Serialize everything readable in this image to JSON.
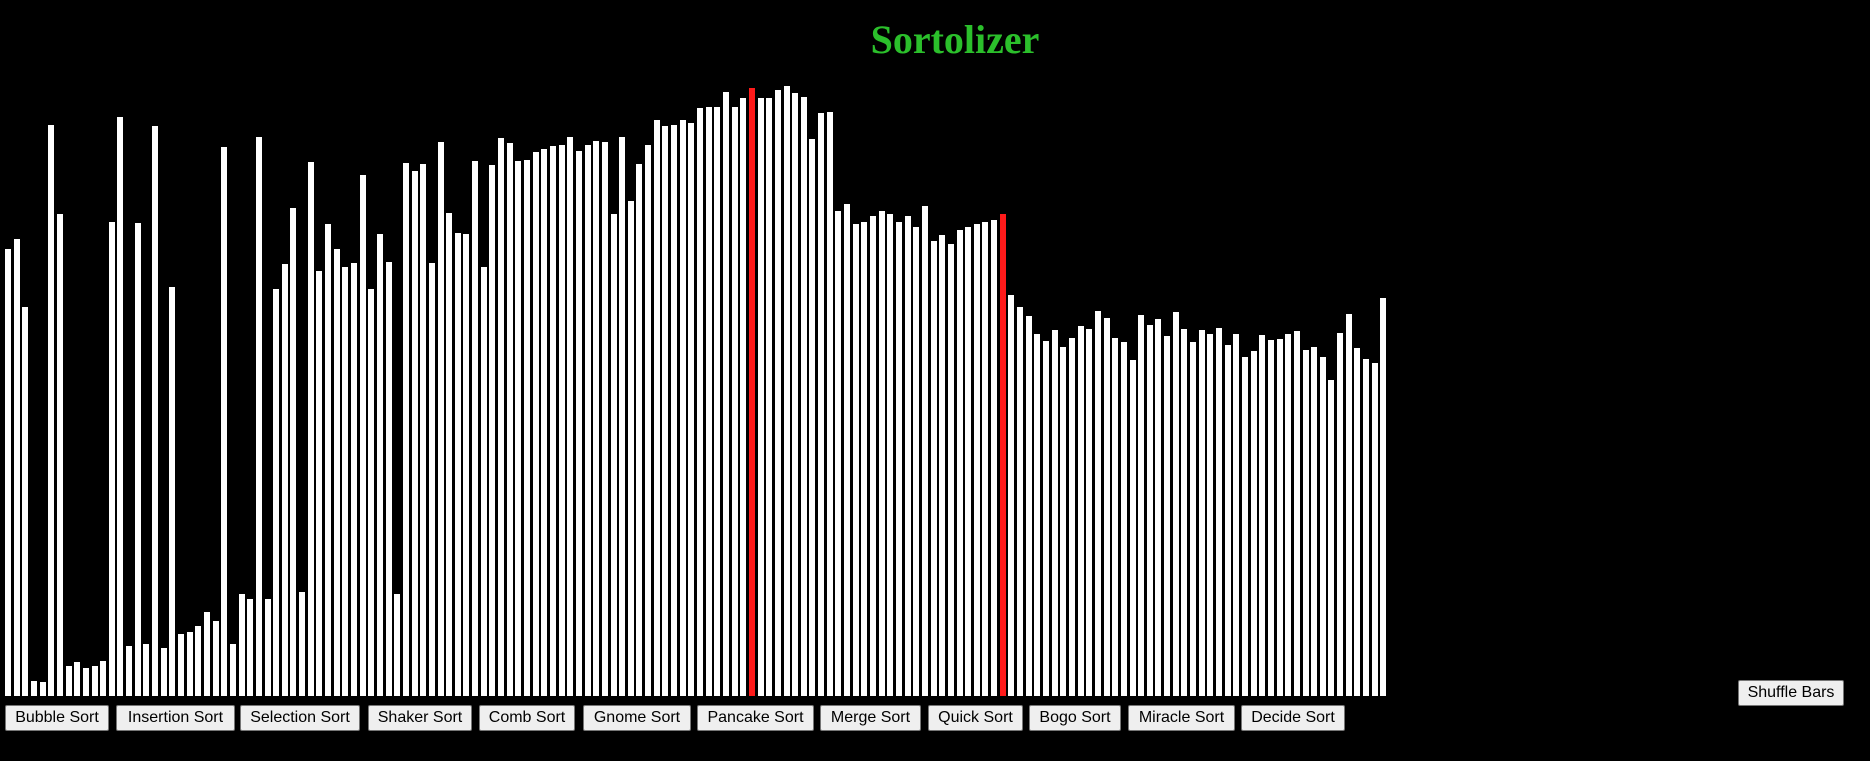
{
  "title": "Sortolizer",
  "colors": {
    "background": "#000000",
    "title": "#2bbf2b",
    "bar": "#ffffff",
    "bar_active": "#ff1a1a"
  },
  "bars": {
    "values": [
      447,
      457,
      389,
      15,
      14,
      571,
      482,
      30,
      34,
      28,
      30,
      35,
      474,
      579,
      50,
      473,
      52,
      570,
      48,
      409,
      62,
      64,
      70,
      84,
      75,
      549,
      52,
      102,
      97,
      559,
      97,
      407,
      432,
      488,
      104,
      534,
      425,
      472,
      447,
      429,
      433,
      521,
      407,
      462,
      434,
      102,
      533,
      525,
      532,
      433,
      554,
      483,
      463,
      462,
      535,
      429,
      531,
      558,
      553,
      535,
      536,
      544,
      547,
      550,
      551,
      559,
      545,
      551,
      555,
      554,
      482,
      559,
      495,
      532,
      551,
      576,
      570,
      571,
      576,
      573,
      588,
      589,
      589,
      604,
      589,
      598,
      608,
      598,
      598,
      606,
      610,
      603,
      599,
      557,
      583,
      584,
      485,
      492,
      472,
      474,
      480,
      485,
      482,
      474,
      480,
      469,
      490,
      455,
      461,
      452,
      466,
      469,
      472,
      474,
      476,
      482,
      401,
      389,
      380,
      362,
      355,
      366,
      349,
      358,
      370,
      367,
      385,
      378,
      358,
      354,
      336,
      381,
      371,
      377,
      360,
      384,
      367,
      354,
      366,
      362,
      368,
      351,
      362,
      339,
      345,
      361,
      356,
      357,
      362,
      365,
      346,
      349,
      339,
      316,
      363,
      382,
      348,
      337,
      333,
      398
    ],
    "active_indices": [
      86,
      115
    ]
  },
  "buttons": {
    "shuffle": "Shuffle Bars",
    "algorithms": [
      "Bubble Sort",
      "Insertion Sort",
      "Selection Sort",
      "Shaker Sort",
      "Comb Sort",
      "Gnome Sort",
      "Pancake Sort",
      "Merge Sort",
      "Quick Sort",
      "Bogo Sort",
      "Miracle Sort",
      "Decide Sort"
    ]
  }
}
